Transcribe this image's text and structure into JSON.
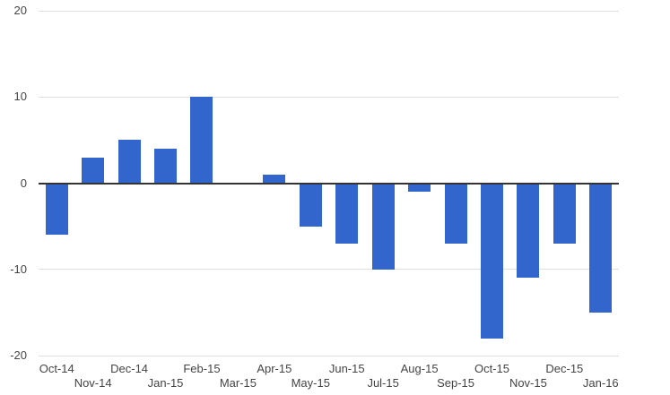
{
  "chart_data": {
    "type": "bar",
    "title": "",
    "xlabel": "",
    "ylabel": "",
    "categories": [
      "Oct-14",
      "Nov-14",
      "Dec-14",
      "Jan-15",
      "Feb-15",
      "Mar-15",
      "Apr-15",
      "May-15",
      "Jun-15",
      "Jul-15",
      "Aug-15",
      "Sep-15",
      "Oct-15",
      "Nov-15",
      "Dec-15",
      "Jan-16"
    ],
    "values": [
      -6,
      3,
      5,
      4,
      10,
      0,
      1,
      -5,
      -7,
      -10,
      -1,
      -7,
      -18,
      -11,
      -7,
      -15
    ],
    "ylim": [
      -20,
      20
    ],
    "yticks": [
      20,
      10,
      0,
      -10,
      -20
    ],
    "grid": true,
    "legend": "none",
    "x_labels_staggered_two_rows": true,
    "colors": {
      "bar": "#3366CC",
      "gridline": "#DFDFDF",
      "baseline": "#333333",
      "axis_text": "#444444",
      "background": "#FFFFFF"
    }
  }
}
